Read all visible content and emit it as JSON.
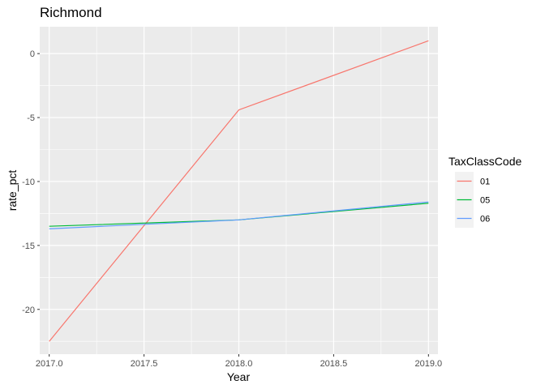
{
  "chart_data": {
    "type": "line",
    "title": "Richmond",
    "xlabel": "Year",
    "ylabel": "rate_pct",
    "x": [
      2017.0,
      2018.0,
      2019.0
    ],
    "xlim": [
      2016.95,
      2019.05
    ],
    "ylim": [
      -23.5,
      2.1
    ],
    "x_ticks": [
      2017.0,
      2017.5,
      2018.0,
      2018.5,
      2019.0
    ],
    "x_tick_labels": [
      "2017.0",
      "2017.5",
      "2018.0",
      "2018.5",
      "2019.0"
    ],
    "y_ticks": [
      0,
      -5,
      -10,
      -15,
      -20
    ],
    "y_tick_labels": [
      "0",
      "-5",
      "-10",
      "-15",
      "-20"
    ],
    "grid": true,
    "legend": {
      "title": "TaxClassCode",
      "placement": "right"
    },
    "series": [
      {
        "name": "01",
        "color": "#F8766D",
        "values": [
          -22.5,
          -4.4,
          1.0
        ]
      },
      {
        "name": "05",
        "color": "#00BA38",
        "values": [
          -13.5,
          -13.0,
          -11.7
        ]
      },
      {
        "name": "06",
        "color": "#619CFF",
        "values": [
          -13.7,
          -13.0,
          -11.6
        ]
      }
    ]
  }
}
